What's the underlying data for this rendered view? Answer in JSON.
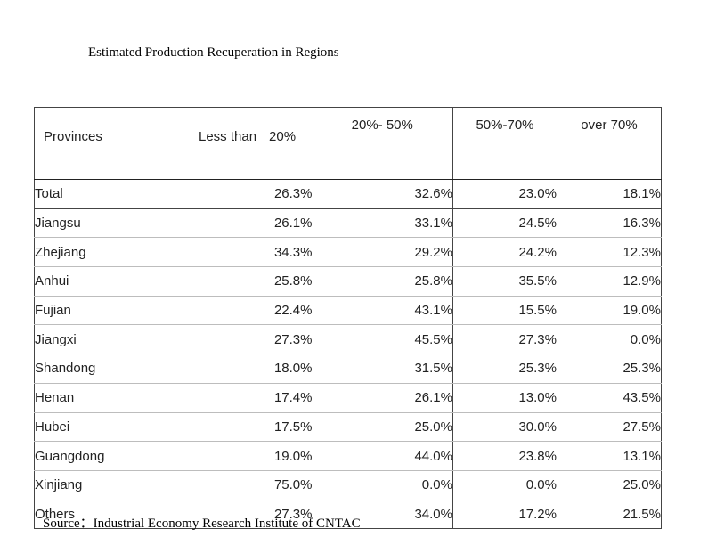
{
  "title": "Estimated Production Recuperation in Regions",
  "source": "Source：Industrial Economy Research Institute of CNTAC",
  "headers": {
    "provinces": "Provinces",
    "less_than_text": "Less than",
    "less_than_num": "20%",
    "range_20_50": "20%- 50%",
    "range_50_70": "50%-70%",
    "over_text": "over",
    "over_num": "70%"
  },
  "rows": [
    {
      "province": "Total",
      "v1": "26.3%",
      "v2": "32.6%",
      "v3": "23.0%",
      "v4": "18.1%"
    },
    {
      "province": "Jiangsu",
      "v1": "26.1%",
      "v2": "33.1%",
      "v3": "24.5%",
      "v4": "16.3%"
    },
    {
      "province": "Zhejiang",
      "v1": "34.3%",
      "v2": "29.2%",
      "v3": "24.2%",
      "v4": "12.3%"
    },
    {
      "province": "Anhui",
      "v1": "25.8%",
      "v2": "25.8%",
      "v3": "35.5%",
      "v4": "12.9%"
    },
    {
      "province": "Fujian",
      "v1": "22.4%",
      "v2": "43.1%",
      "v3": "15.5%",
      "v4": "19.0%"
    },
    {
      "province": "Jiangxi",
      "v1": "27.3%",
      "v2": "45.5%",
      "v3": "27.3%",
      "v4": "0.0%"
    },
    {
      "province": "Shandong",
      "v1": "18.0%",
      "v2": "31.5%",
      "v3": "25.3%",
      "v4": "25.3%"
    },
    {
      "province": "Henan",
      "v1": "17.4%",
      "v2": "26.1%",
      "v3": "13.0%",
      "v4": "43.5%"
    },
    {
      "province": "Hubei",
      "v1": "17.5%",
      "v2": "25.0%",
      "v3": "30.0%",
      "v4": "27.5%"
    },
    {
      "province": "Guangdong",
      "v1": "19.0%",
      "v2": "44.0%",
      "v3": "23.8%",
      "v4": "13.1%"
    },
    {
      "province": "Xinjiang",
      "v1": "75.0%",
      "v2": "0.0%",
      "v3": "0.0%",
      "v4": "25.0%"
    },
    {
      "province": "Others",
      "v1": "27.3%",
      "v2": "34.0%",
      "v3": "17.2%",
      "v4": "21.5%"
    }
  ]
}
